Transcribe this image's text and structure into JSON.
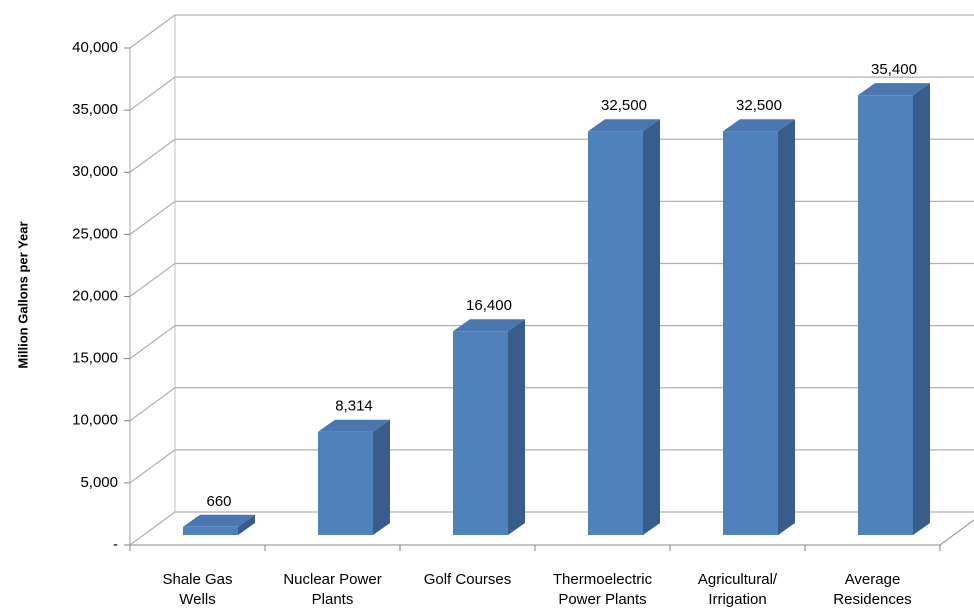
{
  "chart_data": {
    "type": "bar3d",
    "y_axis_label": "Million Gallons per Year",
    "categories": [
      "Shale Gas\nWells",
      "Nuclear Power\nPlants",
      "Golf Courses",
      "Thermoelectric\nPower Plants",
      "Agricultural/\nIrrigation",
      "Average\nResidences"
    ],
    "values": [
      660,
      8314,
      16400,
      32500,
      32500,
      35400
    ],
    "value_labels": [
      "660",
      "8,314",
      "16,400",
      "32,500",
      "32,500",
      "35,400"
    ],
    "color": "#4f81bd",
    "ylim": [
      0,
      40000
    ],
    "yticks": [
      {
        "value": 0,
        "label": "-"
      },
      {
        "value": 5000,
        "label": "5,000"
      },
      {
        "value": 10000,
        "label": "10,000"
      },
      {
        "value": 15000,
        "label": "15,000"
      },
      {
        "value": 20000,
        "label": "20,000"
      },
      {
        "value": 25000,
        "label": "25,000"
      },
      {
        "value": 30000,
        "label": "30,000"
      },
      {
        "value": 35000,
        "label": "35,000"
      },
      {
        "value": 40000,
        "label": "40,000"
      }
    ],
    "grid": true
  }
}
